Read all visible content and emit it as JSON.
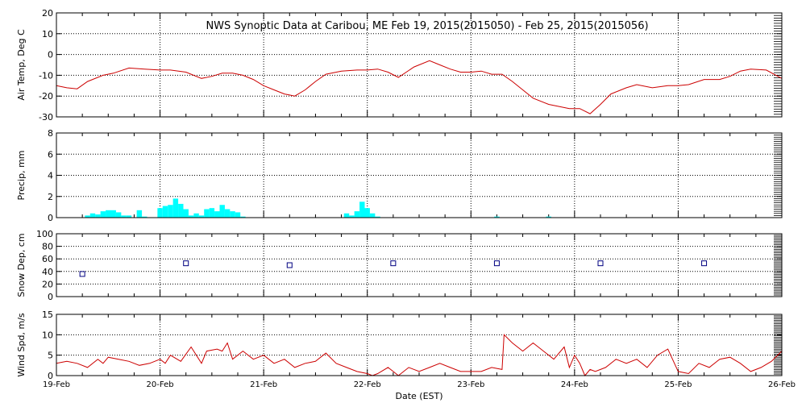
{
  "chart_data": [
    {
      "type": "line",
      "title": "NWS Synoptic Data at Caribou, ME   Feb 19, 2015(2015050) - Feb 25, 2015(2015056)",
      "ylabel": "Air Temp, Deg C",
      "ylim": [
        -30,
        20
      ],
      "yticks": [
        "20",
        "10",
        "0",
        "-10",
        "-20",
        "-30"
      ],
      "grid": true,
      "color": "#cc0000",
      "series": [
        {
          "x_days": [
            0,
            0.1,
            0.2,
            0.3,
            0.45,
            0.55,
            0.7,
            0.85,
            1.0,
            1.1,
            1.25,
            1.4,
            1.5,
            1.6,
            1.7,
            1.8,
            1.9,
            2.0,
            2.1,
            2.2,
            2.25,
            2.3,
            2.4,
            2.5,
            2.6,
            2.75,
            2.9,
            3.0,
            3.1,
            3.2,
            3.3,
            3.45,
            3.6,
            3.7,
            3.8,
            3.9,
            4.0,
            4.1,
            4.2,
            4.3,
            4.4,
            4.5,
            4.6,
            4.75,
            4.85,
            4.95,
            5.05,
            5.15,
            5.25,
            5.35,
            5.5,
            5.6,
            5.75,
            5.9,
            6.0,
            6.1,
            6.25,
            6.4,
            6.5,
            6.6,
            6.7,
            6.85,
            7.0
          ],
          "values": [
            -15,
            -16,
            -16.5,
            -13,
            -10,
            -9,
            -6.5,
            -7,
            -7.5,
            -7.5,
            -8.5,
            -11.5,
            -10.5,
            -9,
            -9,
            -10,
            -12,
            -15,
            -17,
            -19,
            -19.5,
            -20,
            -17,
            -13,
            -9.5,
            -8,
            -7.5,
            -7.5,
            -7,
            -8.5,
            -11,
            -6,
            -3,
            -5,
            -7,
            -8.5,
            -8.5,
            -8,
            -9.5,
            -9.5,
            -13,
            -17,
            -21,
            -24,
            -25,
            -26,
            -26,
            -28.5,
            -24,
            -19,
            -16,
            -14.5,
            -16,
            -15,
            -15,
            -14.5,
            -12,
            -12,
            -10.5,
            -8,
            -7,
            -7.5,
            -11.5
          ]
        }
      ]
    },
    {
      "type": "bar",
      "ylabel": "Precip, mm",
      "ylim": [
        0,
        8
      ],
      "yticks": [
        "8",
        "6",
        "4",
        "2",
        "0"
      ],
      "grid": true,
      "color": "#00ffff",
      "series": [
        {
          "x_days": [
            0.3,
            0.35,
            0.4,
            0.45,
            0.5,
            0.55,
            0.6,
            0.65,
            0.7,
            0.8,
            0.85,
            1.0,
            1.05,
            1.1,
            1.15,
            1.2,
            1.25,
            1.3,
            1.35,
            1.4,
            1.45,
            1.5,
            1.55,
            1.6,
            1.65,
            1.7,
            1.75,
            1.8,
            2.8,
            2.85,
            2.9,
            2.95,
            3.0,
            3.05,
            3.1,
            4.25,
            4.75
          ],
          "values": [
            0.2,
            0.4,
            0.3,
            0.6,
            0.7,
            0.7,
            0.5,
            0.2,
            0.2,
            0.7,
            0.1,
            0.9,
            1.1,
            1.2,
            1.8,
            1.3,
            0.8,
            0.2,
            0.4,
            0.2,
            0.8,
            0.9,
            0.6,
            1.2,
            0.8,
            0.6,
            0.5,
            0.1,
            0.4,
            0.2,
            0.6,
            1.5,
            0.9,
            0.4,
            0.1,
            0.1,
            0.1
          ]
        }
      ]
    },
    {
      "type": "scatter",
      "ylabel": "Snow Dep, cm",
      "ylim": [
        0,
        100
      ],
      "yticks": [
        "100",
        "80",
        "60",
        "40",
        "20",
        "0"
      ],
      "grid": true,
      "color": "#000080",
      "series": [
        {
          "x_days": [
            0.25,
            1.25,
            2.25,
            3.25,
            4.25,
            5.25,
            6.25
          ],
          "values": [
            36,
            53,
            50,
            53,
            53,
            53,
            53
          ]
        }
      ]
    },
    {
      "type": "line",
      "ylabel": "Wind Spd, m/s",
      "xlabel": "Date (EST)",
      "ylim": [
        0,
        15
      ],
      "yticks": [
        "15",
        "10",
        "5",
        "0"
      ],
      "xticks": [
        "19-Feb",
        "20-Feb",
        "21-Feb",
        "22-Feb",
        "23-Feb",
        "24-Feb",
        "25-Feb",
        "26-Feb"
      ],
      "grid": true,
      "color": "#cc0000",
      "series": [
        {
          "x_days": [
            0,
            0.1,
            0.2,
            0.3,
            0.4,
            0.45,
            0.5,
            0.6,
            0.7,
            0.8,
            0.9,
            1.0,
            1.05,
            1.1,
            1.2,
            1.3,
            1.4,
            1.45,
            1.55,
            1.6,
            1.65,
            1.7,
            1.8,
            1.9,
            2.0,
            2.1,
            2.2,
            2.3,
            2.4,
            2.5,
            2.6,
            2.7,
            2.8,
            2.9,
            3.0,
            3.05,
            3.1,
            3.2,
            3.25,
            3.3,
            3.4,
            3.5,
            3.6,
            3.7,
            3.8,
            3.9,
            4.0,
            4.1,
            4.2,
            4.3,
            4.32,
            4.4,
            4.5,
            4.6,
            4.7,
            4.8,
            4.9,
            4.95,
            5.0,
            5.05,
            5.1,
            5.15,
            5.2,
            5.3,
            5.4,
            5.5,
            5.6,
            5.7,
            5.8,
            5.9,
            6.0,
            6.1,
            6.2,
            6.3,
            6.4,
            6.5,
            6.6,
            6.7,
            6.8,
            6.9,
            7.0
          ],
          "values": [
            3,
            3.5,
            3,
            2,
            4,
            3,
            4.5,
            4,
            3.5,
            2.5,
            3,
            4,
            3,
            5,
            3.5,
            7,
            3,
            6,
            6.5,
            6,
            8,
            4,
            6,
            4,
            5,
            3,
            4,
            2,
            3,
            3.5,
            5.5,
            3,
            2,
            1,
            0.5,
            0,
            0.5,
            2,
            1,
            0,
            2,
            1,
            2,
            3,
            2,
            1,
            1,
            1,
            2,
            1.5,
            10,
            8,
            6,
            8,
            6,
            4,
            7,
            2,
            5,
            3,
            0,
            1.5,
            1,
            2,
            4,
            3,
            4,
            2,
            5,
            6.5,
            1,
            0.5,
            3,
            2,
            4,
            4.5,
            3,
            1,
            2,
            3.5,
            6
          ]
        }
      ]
    }
  ]
}
